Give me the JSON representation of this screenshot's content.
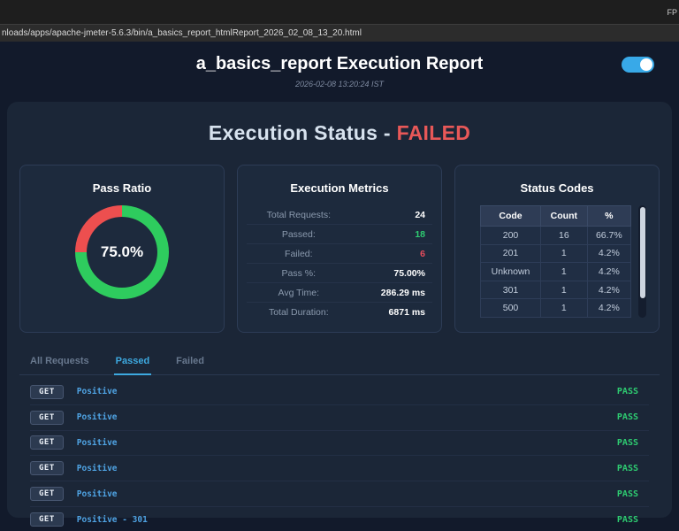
{
  "browser": {
    "topbar_right": "FP",
    "url": "nloads/apps/apache-jmeter-5.6.3/bin/a_basics_report_htmlReport_2026_02_08_13_20.html"
  },
  "header": {
    "title": "a_basics_report Execution Report",
    "timestamp": "2026-02-08 13:20:24 IST",
    "theme_toggle_on": true
  },
  "status_heading": {
    "prefix": "Execution Status - ",
    "status": "FAILED"
  },
  "colors": {
    "accent_blue": "#38a9e8",
    "pass_green": "#2ecc71",
    "fail_red": "#e74c5c",
    "donut_pass": "#2ecc5e",
    "donut_fail": "#ed4f4f",
    "value_white": "#ffffff"
  },
  "chart_data": {
    "type": "pie",
    "title": "Pass Ratio",
    "labels": [
      "Passed",
      "Failed"
    ],
    "values": [
      75.0,
      25.0
    ],
    "colors": [
      "#2ecc5e",
      "#ed4f4f"
    ],
    "center_label": "75.0%",
    "legend_position": "none"
  },
  "metrics": {
    "title": "Execution Metrics",
    "rows": [
      {
        "label": "Total Requests:",
        "value": "24",
        "value_color": "#ffffff"
      },
      {
        "label": "Passed:",
        "value": "18",
        "value_color": "#2ecc71"
      },
      {
        "label": "Failed:",
        "value": "6",
        "value_color": "#e74c5c"
      },
      {
        "label": "Pass %:",
        "value": "75.00%",
        "value_color": "#ffffff"
      },
      {
        "label": "Avg Time:",
        "value": "286.29 ms",
        "value_color": "#ffffff"
      },
      {
        "label": "Total Duration:",
        "value": "6871 ms",
        "value_color": "#ffffff"
      }
    ]
  },
  "status_codes": {
    "title": "Status Codes",
    "headers": [
      "Code",
      "Count",
      "%"
    ],
    "rows": [
      [
        "200",
        "16",
        "66.7%"
      ],
      [
        "201",
        "1",
        "4.2%"
      ],
      [
        "Unknown",
        "1",
        "4.2%"
      ],
      [
        "301",
        "1",
        "4.2%"
      ],
      [
        "500",
        "1",
        "4.2%"
      ]
    ]
  },
  "tabs": [
    {
      "label": "All Requests",
      "active": false
    },
    {
      "label": "Passed",
      "active": true
    },
    {
      "label": "Failed",
      "active": false
    }
  ],
  "requests": [
    {
      "method": "GET",
      "name": "Positive",
      "status": "PASS"
    },
    {
      "method": "GET",
      "name": "Positive",
      "status": "PASS"
    },
    {
      "method": "GET",
      "name": "Positive",
      "status": "PASS"
    },
    {
      "method": "GET",
      "name": "Positive",
      "status": "PASS"
    },
    {
      "method": "GET",
      "name": "Positive",
      "status": "PASS"
    },
    {
      "method": "GET",
      "name": "Positive - 301",
      "status": "PASS"
    }
  ]
}
